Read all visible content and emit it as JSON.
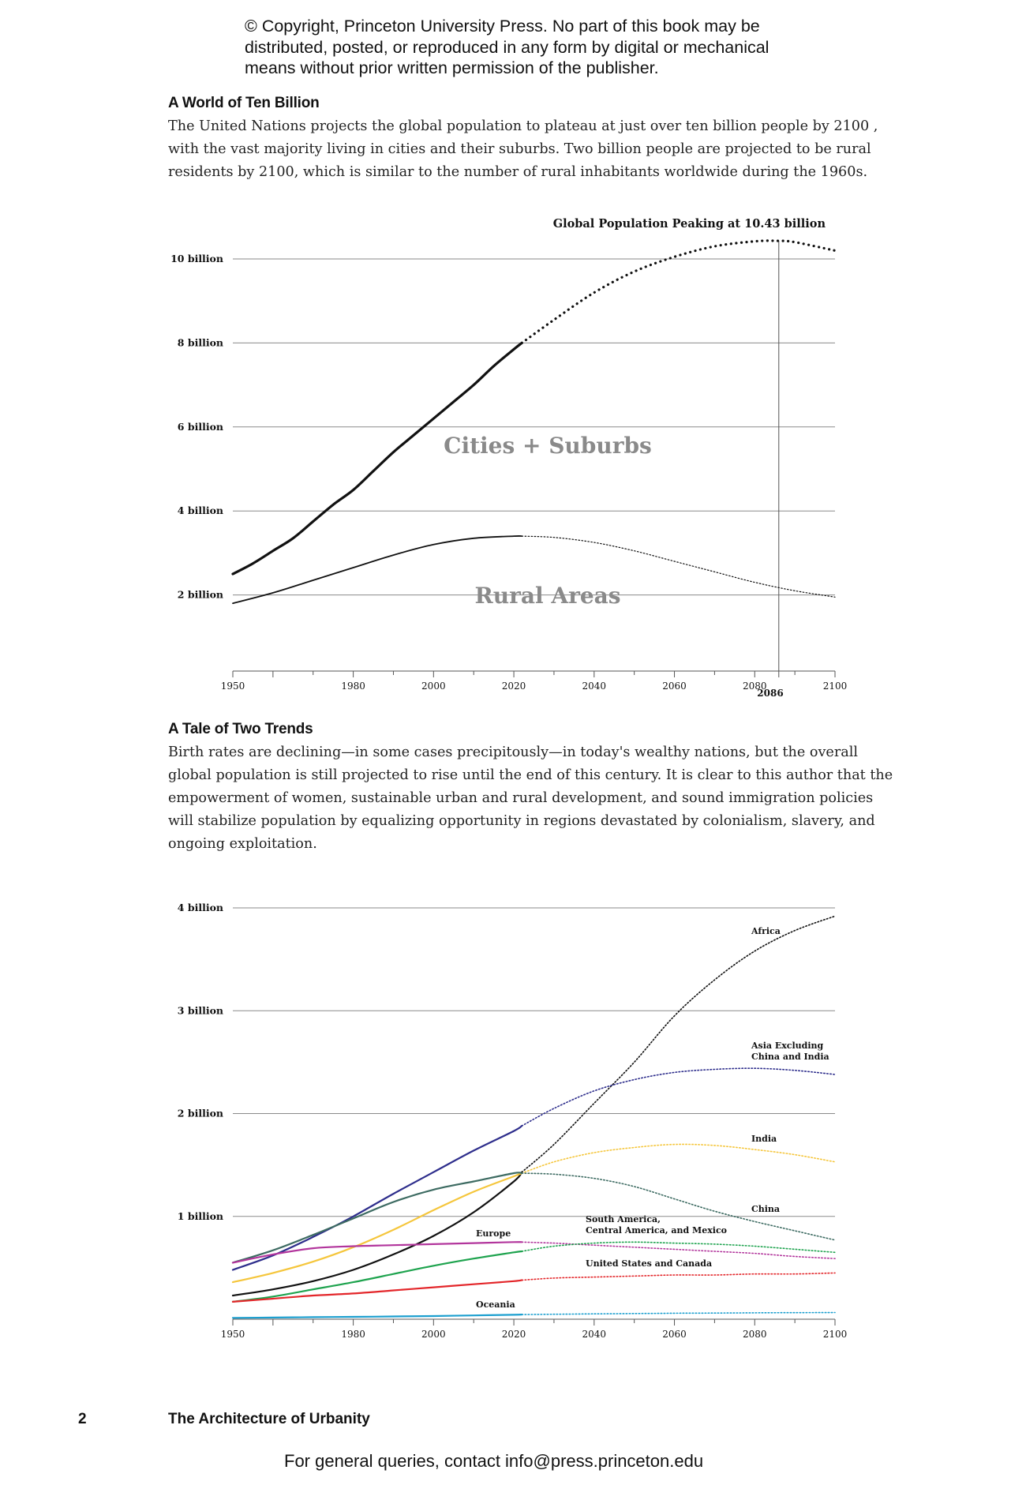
{
  "header": {
    "copyright": "© Copyright, Princeton University Press. No part of this book may be distributed, posted, or reproduced in any form by digital or mechanical means without prior written permission of the publisher."
  },
  "section1": {
    "title": "A World of Ten Billion",
    "body": "The United Nations projects the global population to plateau at just over ten billion people by 2100 , with the vast majority living in cities and their suburbs. Two billion people are projected to be rural residents by 2100, which is similar to the number of rural inhabitants worldwide during the 1960s."
  },
  "section2": {
    "title": "A Tale of Two Trends",
    "body": "Birth rates are declining—in some cases precipitously—in today's wealthy nations, but the overall global population is still projected to rise until the end of this century. It is clear to this author that the empowerment of women, sustainable urban and rural development, and sound immigration policies will stabilize population by equalizing opportunity in regions devastated by colonialism, slavery, and ongoing exploitation."
  },
  "footer": {
    "page_number": "2",
    "book_title": "The Architecture of Urbanity",
    "contact": "For general queries, contact info@press.princeton.edu"
  },
  "chart_data": [
    {
      "type": "line",
      "xlim": [
        1950,
        2100
      ],
      "ylim": [
        0,
        10
      ],
      "x_ticks": [
        "1950",
        "1980",
        "2000",
        "2020",
        "2040",
        "2060",
        "2080",
        "2100"
      ],
      "y_ticks": [
        "2 billion",
        "4 billion",
        "6 billion",
        "8 billion",
        "10 billion"
      ],
      "y_tick_values": [
        2,
        4,
        6,
        8,
        10
      ],
      "observed_until": 2022,
      "grid": true,
      "annotation": "Global Population Peaking at 10.43 billion",
      "peak_year_label": "2086",
      "peak_year": 2086,
      "area_labels": [
        "Cities + Suburbs",
        "Rural Areas"
      ],
      "series": [
        {
          "role": "total",
          "x": [
            1950,
            1955,
            1960,
            1965,
            1970,
            1975,
            1980,
            1985,
            1990,
            1995,
            2000,
            2005,
            2010,
            2015,
            2020,
            2022,
            2030,
            2040,
            2050,
            2060,
            2070,
            2080,
            2086,
            2090,
            2100
          ],
          "values": [
            2.5,
            2.75,
            3.05,
            3.35,
            3.75,
            4.15,
            4.5,
            4.95,
            5.4,
            5.8,
            6.2,
            6.6,
            7.0,
            7.45,
            7.85,
            8.0,
            8.55,
            9.2,
            9.7,
            10.05,
            10.3,
            10.42,
            10.43,
            10.4,
            10.2
          ]
        },
        {
          "role": "rural",
          "x": [
            1950,
            1960,
            1970,
            1980,
            1990,
            2000,
            2010,
            2020,
            2022,
            2030,
            2040,
            2050,
            2060,
            2070,
            2080,
            2090,
            2100
          ],
          "values": [
            1.8,
            2.05,
            2.35,
            2.65,
            2.95,
            3.2,
            3.35,
            3.4,
            3.4,
            3.37,
            3.25,
            3.05,
            2.8,
            2.55,
            2.3,
            2.1,
            1.95
          ]
        }
      ]
    },
    {
      "type": "line",
      "xlim": [
        1950,
        2100
      ],
      "ylim": [
        0,
        4
      ],
      "x_ticks": [
        "1950",
        "1980",
        "2000",
        "2020",
        "2040",
        "2060",
        "2080",
        "2100"
      ],
      "y_ticks": [
        "1 billion",
        "2 billion",
        "3 billion",
        "4 billion"
      ],
      "y_tick_values": [
        1,
        2,
        3,
        4
      ],
      "observed_until": 2022,
      "grid": true,
      "series": [
        {
          "name": "Africa",
          "color": "#111111",
          "x": [
            1950,
            1960,
            1970,
            1980,
            1990,
            2000,
            2010,
            2020,
            2022,
            2030,
            2040,
            2050,
            2060,
            2070,
            2080,
            2090,
            2100
          ],
          "values": [
            0.23,
            0.29,
            0.37,
            0.48,
            0.63,
            0.81,
            1.04,
            1.34,
            1.43,
            1.7,
            2.1,
            2.5,
            2.95,
            3.3,
            3.58,
            3.78,
            3.92
          ]
        },
        {
          "name": "Asia Excluding China and India",
          "color": "#2e2e8c",
          "x": [
            1950,
            1960,
            1970,
            1980,
            1990,
            2000,
            2010,
            2020,
            2022,
            2030,
            2040,
            2050,
            2060,
            2070,
            2080,
            2090,
            2100
          ],
          "values": [
            0.48,
            0.62,
            0.8,
            1.0,
            1.22,
            1.43,
            1.64,
            1.83,
            1.88,
            2.05,
            2.22,
            2.33,
            2.4,
            2.43,
            2.44,
            2.42,
            2.38
          ]
        },
        {
          "name": "India",
          "color": "#f5c63c",
          "x": [
            1950,
            1960,
            1970,
            1980,
            1990,
            2000,
            2010,
            2020,
            2022,
            2030,
            2040,
            2050,
            2060,
            2070,
            2080,
            2090,
            2100
          ],
          "values": [
            0.36,
            0.45,
            0.56,
            0.7,
            0.87,
            1.06,
            1.24,
            1.39,
            1.42,
            1.53,
            1.62,
            1.67,
            1.7,
            1.69,
            1.65,
            1.6,
            1.53
          ]
        },
        {
          "name": "China",
          "color": "#3d6b62",
          "x": [
            1950,
            1960,
            1970,
            1980,
            1990,
            2000,
            2010,
            2020,
            2022,
            2030,
            2040,
            2050,
            2060,
            2070,
            2080,
            2090,
            2100
          ],
          "values": [
            0.55,
            0.67,
            0.82,
            0.98,
            1.14,
            1.26,
            1.34,
            1.42,
            1.42,
            1.41,
            1.37,
            1.29,
            1.17,
            1.05,
            0.95,
            0.86,
            0.77
          ]
        },
        {
          "name": "Europe",
          "color": "#b2359c",
          "x": [
            1950,
            1960,
            1970,
            1980,
            1990,
            2000,
            2010,
            2020,
            2022,
            2030,
            2040,
            2050,
            2060,
            2070,
            2080,
            2090,
            2100
          ],
          "values": [
            0.55,
            0.63,
            0.69,
            0.71,
            0.72,
            0.73,
            0.74,
            0.75,
            0.75,
            0.74,
            0.72,
            0.7,
            0.68,
            0.66,
            0.64,
            0.61,
            0.59
          ]
        },
        {
          "name": "South America, Central America, and Mexico",
          "color": "#1ea34e",
          "x": [
            1950,
            1960,
            1970,
            1980,
            1990,
            2000,
            2010,
            2020,
            2022,
            2030,
            2040,
            2050,
            2060,
            2070,
            2080,
            2090,
            2100
          ],
          "values": [
            0.17,
            0.22,
            0.29,
            0.36,
            0.44,
            0.52,
            0.59,
            0.65,
            0.66,
            0.71,
            0.74,
            0.75,
            0.74,
            0.73,
            0.71,
            0.68,
            0.65
          ]
        },
        {
          "name": "United States and Canada",
          "color": "#e3262a",
          "x": [
            1950,
            1960,
            1970,
            1980,
            1990,
            2000,
            2010,
            2020,
            2022,
            2030,
            2040,
            2050,
            2060,
            2070,
            2080,
            2090,
            2100
          ],
          "values": [
            0.17,
            0.2,
            0.23,
            0.25,
            0.28,
            0.31,
            0.34,
            0.37,
            0.38,
            0.4,
            0.41,
            0.42,
            0.43,
            0.43,
            0.44,
            0.44,
            0.45
          ]
        },
        {
          "name": "Oceania",
          "color": "#1c9fcf",
          "x": [
            1950,
            1960,
            1970,
            1980,
            1990,
            2000,
            2010,
            2020,
            2022,
            2030,
            2040,
            2050,
            2060,
            2070,
            2080,
            2090,
            2100
          ],
          "values": [
            0.013,
            0.016,
            0.02,
            0.023,
            0.027,
            0.031,
            0.037,
            0.043,
            0.045,
            0.048,
            0.052,
            0.055,
            0.058,
            0.06,
            0.062,
            0.064,
            0.065
          ]
        }
      ]
    }
  ]
}
